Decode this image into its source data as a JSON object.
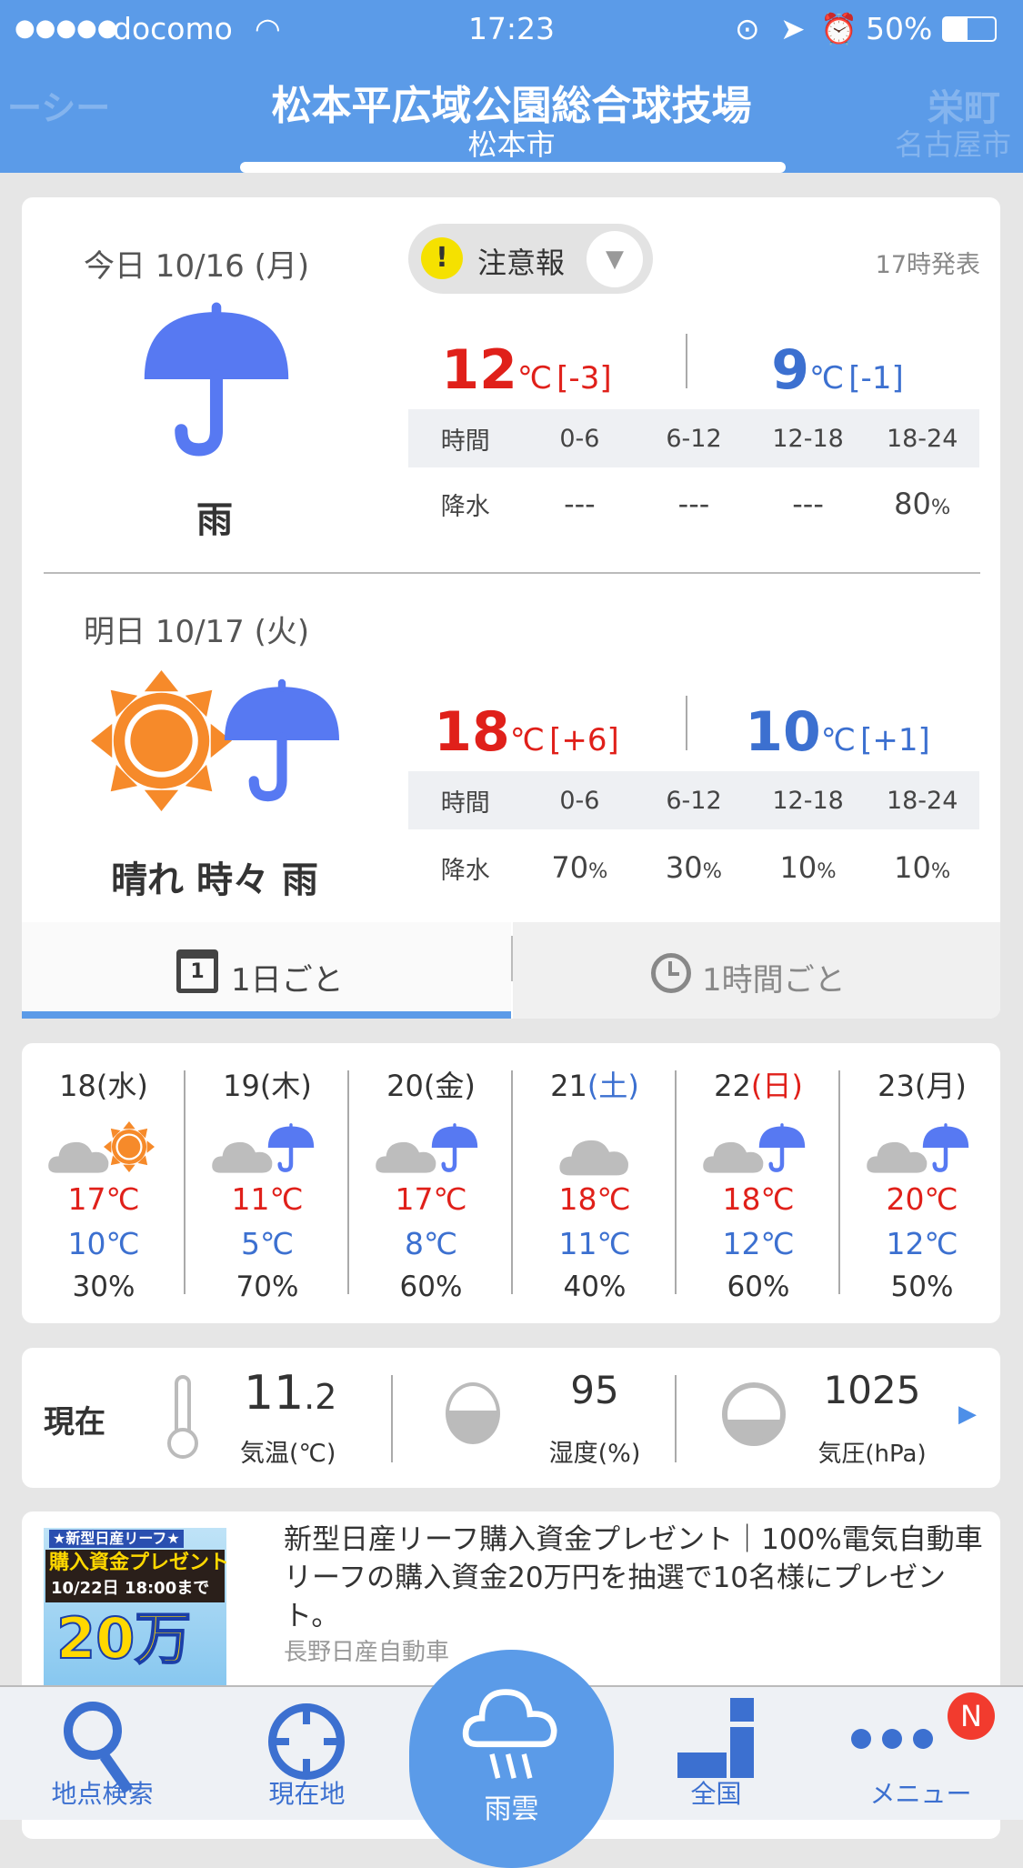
{
  "status_bar": {
    "carrier": "docomo",
    "time": "17:23",
    "battery": "50%",
    "signal_dots": 5
  },
  "header": {
    "title": "松本平広域公園総合球技場",
    "subtitle": "松本市",
    "prev_title": "ーシー",
    "next_title": "栄町",
    "next_subtitle": "名古屋市"
  },
  "today": {
    "label": "今日 10/16 (月)",
    "warning": "注意報",
    "published": "17時発表",
    "weather": "雨",
    "icon": "umbrella-icon",
    "high": "12",
    "high_diff": "[-3]",
    "low": "9",
    "low_diff": "[-1]",
    "unit": "℃",
    "table": {
      "headers": [
        "時間",
        "0-6",
        "6-12",
        "12-18",
        "18-24"
      ],
      "row_label": "降水",
      "values": [
        "---",
        "---",
        "---",
        "80"
      ],
      "pct": "%"
    }
  },
  "tomorrow": {
    "label": "明日 10/17 (火)",
    "weather": "晴れ 時々 雨",
    "icon": "sun-umbrella-icon",
    "high": "18",
    "high_diff": "[+6]",
    "low": "10",
    "low_diff": "[+1]",
    "unit": "℃",
    "table": {
      "headers": [
        "時間",
        "0-6",
        "6-12",
        "12-18",
        "18-24"
      ],
      "row_label": "降水",
      "values": [
        "70",
        "30",
        "10",
        "10"
      ],
      "pct": "%"
    }
  },
  "tabs": [
    {
      "label": "1日ごと",
      "active": true,
      "icon": "calendar-icon",
      "icon_text": "1"
    },
    {
      "label": "1時間ごと",
      "active": false,
      "icon": "clock-icon"
    }
  ],
  "weekly": [
    {
      "num": "18",
      "dow": "(水)",
      "dow_color": "#333333",
      "icon": "cloud-sun",
      "high": "17℃",
      "low": "10℃",
      "pop": "30%"
    },
    {
      "num": "19",
      "dow": "(木)",
      "dow_color": "#333333",
      "icon": "cloud-umbrella",
      "high": "11℃",
      "low": "5℃",
      "pop": "70%"
    },
    {
      "num": "20",
      "dow": "(金)",
      "dow_color": "#333333",
      "icon": "cloud-umbrella",
      "high": "17℃",
      "low": "8℃",
      "pop": "60%"
    },
    {
      "num": "21",
      "dow": "(土)",
      "dow_color": "#3c70d0",
      "icon": "cloud",
      "high": "18℃",
      "low": "11℃",
      "pop": "40%"
    },
    {
      "num": "22",
      "dow": "(日)",
      "dow_color": "#e0201a",
      "icon": "cloud-umbrella",
      "high": "18℃",
      "low": "12℃",
      "pop": "60%"
    },
    {
      "num": "23",
      "dow": "(月)",
      "dow_color": "#333333",
      "icon": "cloud-umbrella",
      "high": "20℃",
      "low": "12℃",
      "pop": "50%"
    }
  ],
  "current": {
    "label": "現在",
    "temp_int": "11",
    "temp_dec": ".2",
    "temp_label": "気温(℃)",
    "humidity": "95",
    "humidity_label": "湿度(%)",
    "pressure": "1025",
    "pressure_label": "気圧(hPa)"
  },
  "ad": {
    "text": "新型日産リーフ購入資金プレゼント｜100%電気自動車リーフの購入資金20万円を抽選で10名様にプレゼント。",
    "sponsor": "長野日産自動車",
    "image_text": {
      "line1": "★新型日産リーフ★",
      "line2": "購入資金プレゼント",
      "line3": "10/22日 18:00まで",
      "line4": "20万"
    }
  },
  "nav": [
    {
      "label": "地点検索",
      "icon": "search-icon"
    },
    {
      "label": "現在地",
      "icon": "crosshair-icon"
    },
    {
      "label": "雨雲",
      "icon": "rain-cloud-icon"
    },
    {
      "label": "全国",
      "icon": "japan-map-icon"
    },
    {
      "label": "メニュー",
      "icon": "more-icon",
      "badge": "N"
    }
  ],
  "colors": {
    "brand": "#5b9be8",
    "nav_icon": "#3c70d0",
    "high": "#e0201a",
    "low": "#3c70d0",
    "sun": "#f68a2a",
    "umbrella": "#4f7ff0",
    "badge": "#f23b2e"
  }
}
